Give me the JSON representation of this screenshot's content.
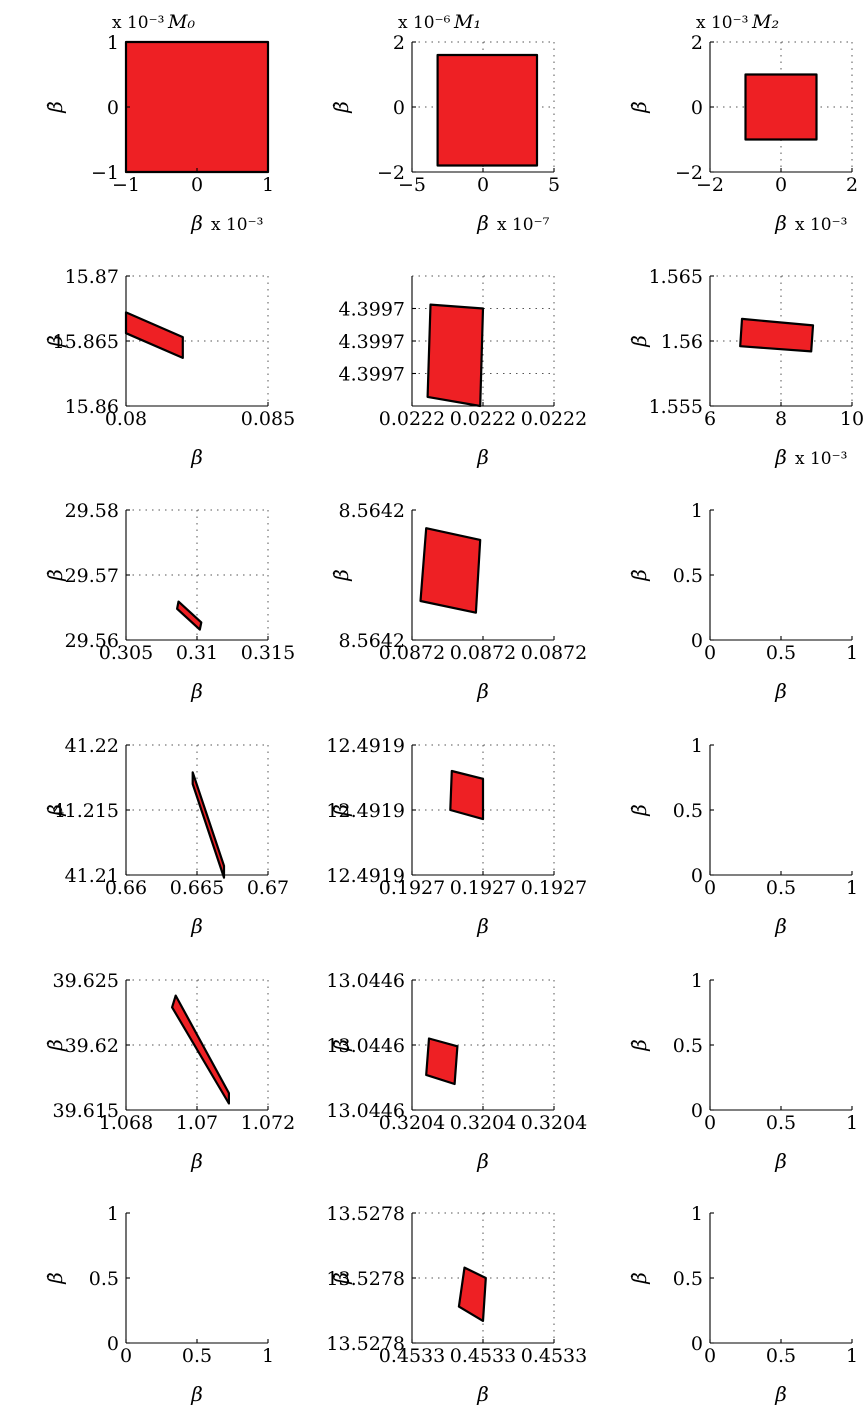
{
  "colors": {
    "fill": "#ee2024",
    "edge": "#000000",
    "grid": "#555555"
  },
  "chart_data": [
    {
      "type": "area",
      "row": 0,
      "col": 0,
      "title": "M₀",
      "xlabel": "β",
      "ylabel": "β̇",
      "xlim": [
        -1,
        1
      ],
      "ylim": [
        -1,
        1
      ],
      "grid": false,
      "x_multiplier": "x 10⁻³",
      "y_multiplier": "x 10⁻³",
      "xticks": [
        -1,
        0,
        1
      ],
      "xtick_labels": [
        "−1",
        "0",
        "1"
      ],
      "yticks": [
        -1,
        0,
        1
      ],
      "ytick_labels": [
        "−1",
        "0",
        "1"
      ],
      "regions": [
        [
          [
            -1,
            -1
          ],
          [
            1,
            -1
          ],
          [
            1,
            1
          ],
          [
            -1,
            1
          ]
        ]
      ]
    },
    {
      "type": "area",
      "row": 0,
      "col": 1,
      "title": "M₁",
      "xlabel": "β",
      "ylabel": "β̇",
      "xlim": [
        -5,
        5
      ],
      "ylim": [
        -2,
        2
      ],
      "grid": true,
      "x_multiplier": "x 10⁻⁷",
      "y_multiplier": "x 10⁻⁶",
      "xticks": [
        -5,
        0,
        5
      ],
      "xtick_labels": [
        "−5",
        "0",
        "5"
      ],
      "yticks": [
        -2,
        0,
        2
      ],
      "ytick_labels": [
        "−2",
        "0",
        "2"
      ],
      "regions": [
        [
          [
            -3.2,
            -1.8
          ],
          [
            3.8,
            -1.8
          ],
          [
            3.8,
            1.6
          ],
          [
            -3.2,
            1.6
          ]
        ]
      ]
    },
    {
      "type": "area",
      "row": 0,
      "col": 2,
      "title": "M₂",
      "xlabel": "β",
      "ylabel": "β̇",
      "xlim": [
        -2,
        2
      ],
      "ylim": [
        -2,
        2
      ],
      "grid": true,
      "x_multiplier": "x 10⁻³",
      "y_multiplier": "x 10⁻³",
      "xticks": [
        -2,
        0,
        2
      ],
      "xtick_labels": [
        "−2",
        "0",
        "2"
      ],
      "yticks": [
        -2,
        0,
        2
      ],
      "ytick_labels": [
        "−2",
        "0",
        "2"
      ],
      "regions": [
        [
          [
            -1,
            -1
          ],
          [
            1,
            -1
          ],
          [
            1,
            1
          ],
          [
            -1,
            1
          ]
        ]
      ]
    },
    {
      "type": "area",
      "row": 1,
      "col": 0,
      "xlabel": "β",
      "ylabel": "β̇",
      "xlim": [
        0.08,
        0.085
      ],
      "ylim": [
        15.86,
        15.87
      ],
      "grid": true,
      "xticks": [
        0.08,
        0.085
      ],
      "xtick_labels": [
        "0.08",
        "0.085"
      ],
      "yticks": [
        15.86,
        15.865,
        15.87
      ],
      "ytick_labels": [
        "15.86",
        "15.865",
        "15.87"
      ],
      "regions": [
        [
          [
            0.08,
            15.8672
          ],
          [
            0.082,
            15.8653
          ],
          [
            0.082,
            15.8637
          ],
          [
            0.08,
            15.8656
          ]
        ]
      ]
    },
    {
      "type": "area",
      "row": 1,
      "col": 1,
      "xlabel": "β",
      "ylabel": "",
      "xlim": [
        0,
        1
      ],
      "ylim": [
        0,
        1
      ],
      "grid": true,
      "xticks": [
        0,
        0.5,
        1
      ],
      "xtick_labels": [
        "0.0222",
        "0.0222",
        "0.0222"
      ],
      "yticks": [
        0.25,
        0.5,
        0.75
      ],
      "ytick_labels": [
        "4.3997",
        "4.3997",
        "4.3997"
      ],
      "regions": [
        [
          [
            0.13,
            0.78
          ],
          [
            0.5,
            0.75
          ],
          [
            0.48,
            0.0
          ],
          [
            0.11,
            0.07
          ]
        ]
      ]
    },
    {
      "type": "area",
      "row": 1,
      "col": 2,
      "xlabel": "β",
      "ylabel": "β̇",
      "xlim": [
        6,
        10
      ],
      "ylim": [
        1.555,
        1.565
      ],
      "grid": true,
      "x_multiplier": "x 10⁻³",
      "xticks": [
        6,
        8,
        10
      ],
      "xtick_labels": [
        "6",
        "8",
        "10"
      ],
      "yticks": [
        1.555,
        1.56,
        1.565
      ],
      "ytick_labels": [
        "1.555",
        "1.56",
        "1.565"
      ],
      "regions": [
        [
          [
            6.9,
            1.5617
          ],
          [
            8.9,
            1.5612
          ],
          [
            8.85,
            1.5592
          ],
          [
            6.85,
            1.5596
          ]
        ]
      ]
    },
    {
      "type": "area",
      "row": 2,
      "col": 0,
      "xlabel": "β",
      "ylabel": "β̇",
      "xlim": [
        0.305,
        0.315
      ],
      "ylim": [
        29.56,
        29.58
      ],
      "grid": true,
      "xticks": [
        0.305,
        0.31,
        0.315
      ],
      "xtick_labels": [
        "0.305",
        "0.31",
        "0.315"
      ],
      "yticks": [
        29.56,
        29.57,
        29.58
      ],
      "ytick_labels": [
        "29.56",
        "29.57",
        "29.58"
      ],
      "regions": [
        [
          [
            0.3087,
            29.5659
          ],
          [
            0.3103,
            29.5627
          ],
          [
            0.3102,
            29.5616
          ],
          [
            0.3086,
            29.5648
          ]
        ]
      ]
    },
    {
      "type": "area",
      "row": 2,
      "col": 1,
      "xlabel": "β",
      "ylabel": "β̇",
      "xlim": [
        0,
        1
      ],
      "ylim": [
        0,
        1
      ],
      "grid": false,
      "xticks": [
        0,
        0.5,
        1
      ],
      "xtick_labels": [
        "0.0872",
        "0.0872",
        "0.0872"
      ],
      "yticks": [
        0,
        1
      ],
      "ytick_labels": [
        "8.5642",
        "8.5642"
      ],
      "regions": [
        [
          [
            0.1,
            0.86
          ],
          [
            0.48,
            0.77
          ],
          [
            0.45,
            0.21
          ],
          [
            0.06,
            0.3
          ]
        ]
      ]
    },
    {
      "type": "area",
      "row": 2,
      "col": 2,
      "xlabel": "β",
      "ylabel": "β̇",
      "xlim": [
        0,
        1
      ],
      "ylim": [
        0,
        1
      ],
      "grid": false,
      "xticks": [
        0,
        0.5,
        1
      ],
      "xtick_labels": [
        "0",
        "0.5",
        "1"
      ],
      "yticks": [
        0,
        0.5,
        1
      ],
      "ytick_labels": [
        "0",
        "0.5",
        "1"
      ],
      "regions": []
    },
    {
      "type": "area",
      "row": 3,
      "col": 0,
      "xlabel": "β",
      "ylabel": "β̇",
      "xlim": [
        0.66,
        0.67
      ],
      "ylim": [
        41.21,
        41.22
      ],
      "grid": true,
      "xticks": [
        0.66,
        0.665,
        0.67
      ],
      "xtick_labels": [
        "0.66",
        "0.665",
        "0.67"
      ],
      "yticks": [
        41.21,
        41.215,
        41.22
      ],
      "ytick_labels": [
        "41.21",
        "41.215",
        "41.22"
      ],
      "regions": [
        [
          [
            0.6647,
            41.2179
          ],
          [
            0.6669,
            41.2107
          ],
          [
            0.6669,
            41.2098
          ],
          [
            0.6647,
            41.217
          ]
        ]
      ]
    },
    {
      "type": "area",
      "row": 3,
      "col": 1,
      "xlabel": "β",
      "ylabel": "β̇",
      "xlim": [
        0,
        1
      ],
      "ylim": [
        0,
        1
      ],
      "grid": true,
      "xticks": [
        0,
        0.5,
        1
      ],
      "xtick_labels": [
        "0.1927",
        "0.1927",
        "0.1927"
      ],
      "yticks": [
        0,
        0.5,
        1
      ],
      "ytick_labels": [
        "12.4919",
        "12.4919",
        "12.4919"
      ],
      "regions": [
        [
          [
            0.28,
            0.8
          ],
          [
            0.5,
            0.74
          ],
          [
            0.5,
            0.43
          ],
          [
            0.27,
            0.5
          ]
        ]
      ]
    },
    {
      "type": "area",
      "row": 3,
      "col": 2,
      "xlabel": "β",
      "ylabel": "β̇",
      "xlim": [
        0,
        1
      ],
      "ylim": [
        0,
        1
      ],
      "grid": false,
      "xticks": [
        0,
        0.5,
        1
      ],
      "xtick_labels": [
        "0",
        "0.5",
        "1"
      ],
      "yticks": [
        0,
        0.5,
        1
      ],
      "ytick_labels": [
        "0",
        "0.5",
        "1"
      ],
      "regions": []
    },
    {
      "type": "area",
      "row": 4,
      "col": 0,
      "xlabel": "β",
      "ylabel": "β̇",
      "xlim": [
        1.068,
        1.072
      ],
      "ylim": [
        39.615,
        39.625
      ],
      "grid": true,
      "xticks": [
        1.068,
        1.07,
        1.072
      ],
      "xtick_labels": [
        "1.068",
        "1.07",
        "1.072"
      ],
      "yticks": [
        39.615,
        39.62,
        39.625
      ],
      "ytick_labels": [
        "39.615",
        "39.62",
        "39.625"
      ],
      "regions": [
        [
          [
            1.0694,
            39.6238
          ],
          [
            1.0709,
            39.6163
          ],
          [
            1.0709,
            39.6155
          ],
          [
            1.0693,
            39.6229
          ]
        ]
      ]
    },
    {
      "type": "area",
      "row": 4,
      "col": 1,
      "xlabel": "β",
      "ylabel": "β̇",
      "xlim": [
        0,
        1
      ],
      "ylim": [
        0,
        1
      ],
      "grid": true,
      "xticks": [
        0,
        0.5,
        1
      ],
      "xtick_labels": [
        "0.3204",
        "0.3204",
        "0.3204"
      ],
      "yticks": [
        0,
        0.5,
        1
      ],
      "ytick_labels": [
        "13.0446",
        "13.0446",
        "13.0446"
      ],
      "regions": [
        [
          [
            0.12,
            0.55
          ],
          [
            0.32,
            0.49
          ],
          [
            0.3,
            0.2
          ],
          [
            0.1,
            0.27
          ]
        ]
      ]
    },
    {
      "type": "area",
      "row": 4,
      "col": 2,
      "xlabel": "β",
      "ylabel": "β̇",
      "xlim": [
        0,
        1
      ],
      "ylim": [
        0,
        1
      ],
      "grid": false,
      "xticks": [
        0,
        0.5,
        1
      ],
      "xtick_labels": [
        "0",
        "0.5",
        "1"
      ],
      "yticks": [
        0,
        0.5,
        1
      ],
      "ytick_labels": [
        "0",
        "0.5",
        "1"
      ],
      "regions": []
    },
    {
      "type": "area",
      "row": 5,
      "col": 0,
      "xlabel": "β",
      "ylabel": "β̇",
      "xlim": [
        0,
        1
      ],
      "ylim": [
        0,
        1
      ],
      "grid": false,
      "xticks": [
        0,
        0.5,
        1
      ],
      "xtick_labels": [
        "0",
        "0.5",
        "1"
      ],
      "yticks": [
        0,
        0.5,
        1
      ],
      "ytick_labels": [
        "0",
        "0.5",
        "1"
      ],
      "regions": []
    },
    {
      "type": "area",
      "row": 5,
      "col": 1,
      "xlabel": "β",
      "ylabel": "β̇",
      "xlim": [
        0,
        1
      ],
      "ylim": [
        0,
        1
      ],
      "grid": true,
      "xticks": [
        0,
        0.5,
        1
      ],
      "xtick_labels": [
        "0.4533",
        "0.4533",
        "0.4533"
      ],
      "yticks": [
        0,
        0.5,
        1
      ],
      "ytick_labels": [
        "13.5278",
        "13.5278",
        "13.5278"
      ],
      "regions": [
        [
          [
            0.37,
            0.58
          ],
          [
            0.52,
            0.5
          ],
          [
            0.5,
            0.17
          ],
          [
            0.33,
            0.28
          ]
        ]
      ]
    },
    {
      "type": "area",
      "row": 5,
      "col": 2,
      "xlabel": "β",
      "ylabel": "β̇",
      "xlim": [
        0,
        1
      ],
      "ylim": [
        0,
        1
      ],
      "grid": false,
      "xticks": [
        0,
        0.5,
        1
      ],
      "xtick_labels": [
        "0",
        "0.5",
        "1"
      ],
      "yticks": [
        0,
        0.5,
        1
      ],
      "ytick_labels": [
        "0",
        "0.5",
        "1"
      ],
      "regions": []
    }
  ]
}
